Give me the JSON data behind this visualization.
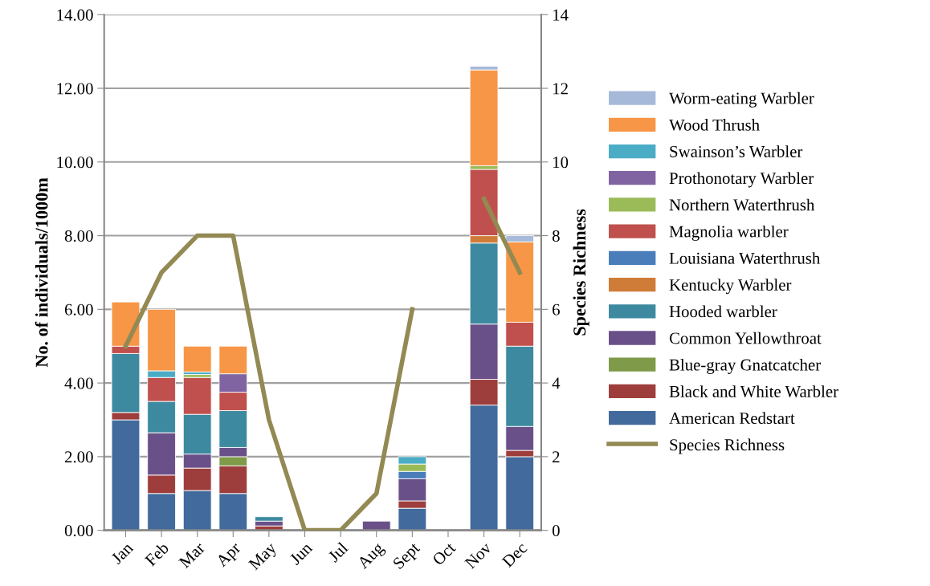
{
  "chart_data": {
    "type": "bar",
    "stacked": true,
    "ylabel": "No. of individuals/1000m",
    "y2label": "Species Richness",
    "categories": [
      "Jan",
      "Feb",
      "Mar",
      "Apr",
      "May",
      "Jun",
      "Jul",
      "Aug",
      "Sept",
      "Oct",
      "Nov",
      "Dec"
    ],
    "series": [
      {
        "name": "American Redstart",
        "color": "#426a9c",
        "values": [
          3.0,
          1.0,
          1.08,
          1.0,
          null,
          null,
          null,
          null,
          0.6,
          null,
          3.4,
          2.0
        ]
      },
      {
        "name": "Black and White Warbler",
        "color": "#9e3e3c",
        "values": [
          0.2,
          0.5,
          0.61,
          0.75,
          0.12,
          null,
          null,
          null,
          0.2,
          null,
          0.7,
          0.17
        ]
      },
      {
        "name": "Blue-gray Gnatcatcher",
        "color": "#7f9a48",
        "values": [
          null,
          null,
          null,
          0.25,
          null,
          null,
          null,
          null,
          null,
          null,
          null,
          null
        ]
      },
      {
        "name": "Common Yellowthroat",
        "color": "#6a5088",
        "values": [
          null,
          1.15,
          0.38,
          0.25,
          0.13,
          null,
          null,
          0.25,
          0.6,
          null,
          1.5,
          0.65
        ]
      },
      {
        "name": "Hooded warbler",
        "color": "#3d8aa0",
        "values": [
          1.6,
          0.85,
          1.08,
          1.0,
          0.12,
          null,
          null,
          null,
          null,
          null,
          2.2,
          2.18
        ]
      },
      {
        "name": "Kentucky Warbler",
        "color": "#cf7c38",
        "values": [
          null,
          null,
          null,
          null,
          null,
          null,
          null,
          null,
          null,
          null,
          0.2,
          null
        ]
      },
      {
        "name": "Louisiana Waterthrush",
        "color": "#4a7ebb",
        "values": [
          null,
          null,
          null,
          null,
          null,
          null,
          null,
          null,
          0.2,
          null,
          null,
          null
        ]
      },
      {
        "name": "Magnolia warbler",
        "color": "#c0504d",
        "values": [
          0.2,
          0.65,
          1.0,
          0.5,
          null,
          null,
          null,
          null,
          null,
          null,
          1.8,
          0.65
        ]
      },
      {
        "name": "Northern Waterthrush",
        "color": "#9bbb59",
        "values": [
          null,
          null,
          0.08,
          null,
          null,
          null,
          null,
          null,
          0.2,
          null,
          0.1,
          null
        ]
      },
      {
        "name": "Prothonotary Warbler",
        "color": "#8064a2",
        "values": [
          null,
          null,
          null,
          0.5,
          null,
          null,
          null,
          null,
          null,
          null,
          null,
          null
        ]
      },
      {
        "name": "Swainson’s Warbler",
        "color": "#4bacc6",
        "values": [
          null,
          0.18,
          0.07,
          null,
          null,
          null,
          null,
          null,
          0.2,
          null,
          null,
          null
        ]
      },
      {
        "name": "Wood Thrush",
        "color": "#f79646",
        "values": [
          1.2,
          1.67,
          0.7,
          0.75,
          null,
          null,
          null,
          null,
          null,
          null,
          2.6,
          2.18
        ]
      },
      {
        "name": "Worm-eating Warbler",
        "color": "#a7b9d9",
        "values": [
          null,
          null,
          null,
          null,
          null,
          null,
          null,
          null,
          null,
          null,
          0.1,
          0.17
        ]
      },
      {
        "name": "Species Richness",
        "color": "#938953",
        "type": "line",
        "axis": "y2",
        "values": [
          5,
          7,
          8,
          8,
          3,
          0,
          0,
          1,
          6,
          null,
          9,
          7
        ]
      }
    ],
    "ylim": [
      0,
      14
    ],
    "yticks": [
      {
        "value": 0,
        "label": "0.00"
      },
      {
        "value": 2,
        "label": "2.00"
      },
      {
        "value": 4,
        "label": "4.00"
      },
      {
        "value": 6,
        "label": "6.00"
      },
      {
        "value": 8,
        "label": "8.00"
      },
      {
        "value": 10,
        "label": "10.00"
      },
      {
        "value": 12,
        "label": "12.00"
      },
      {
        "value": 14,
        "label": "14.00"
      }
    ],
    "y2lim": [
      0,
      14
    ],
    "y2ticks": [
      0,
      2,
      4,
      6,
      8,
      10,
      12,
      14
    ],
    "grid": "y",
    "legend": "right",
    "marker": "none",
    "line_style": "solid"
  }
}
